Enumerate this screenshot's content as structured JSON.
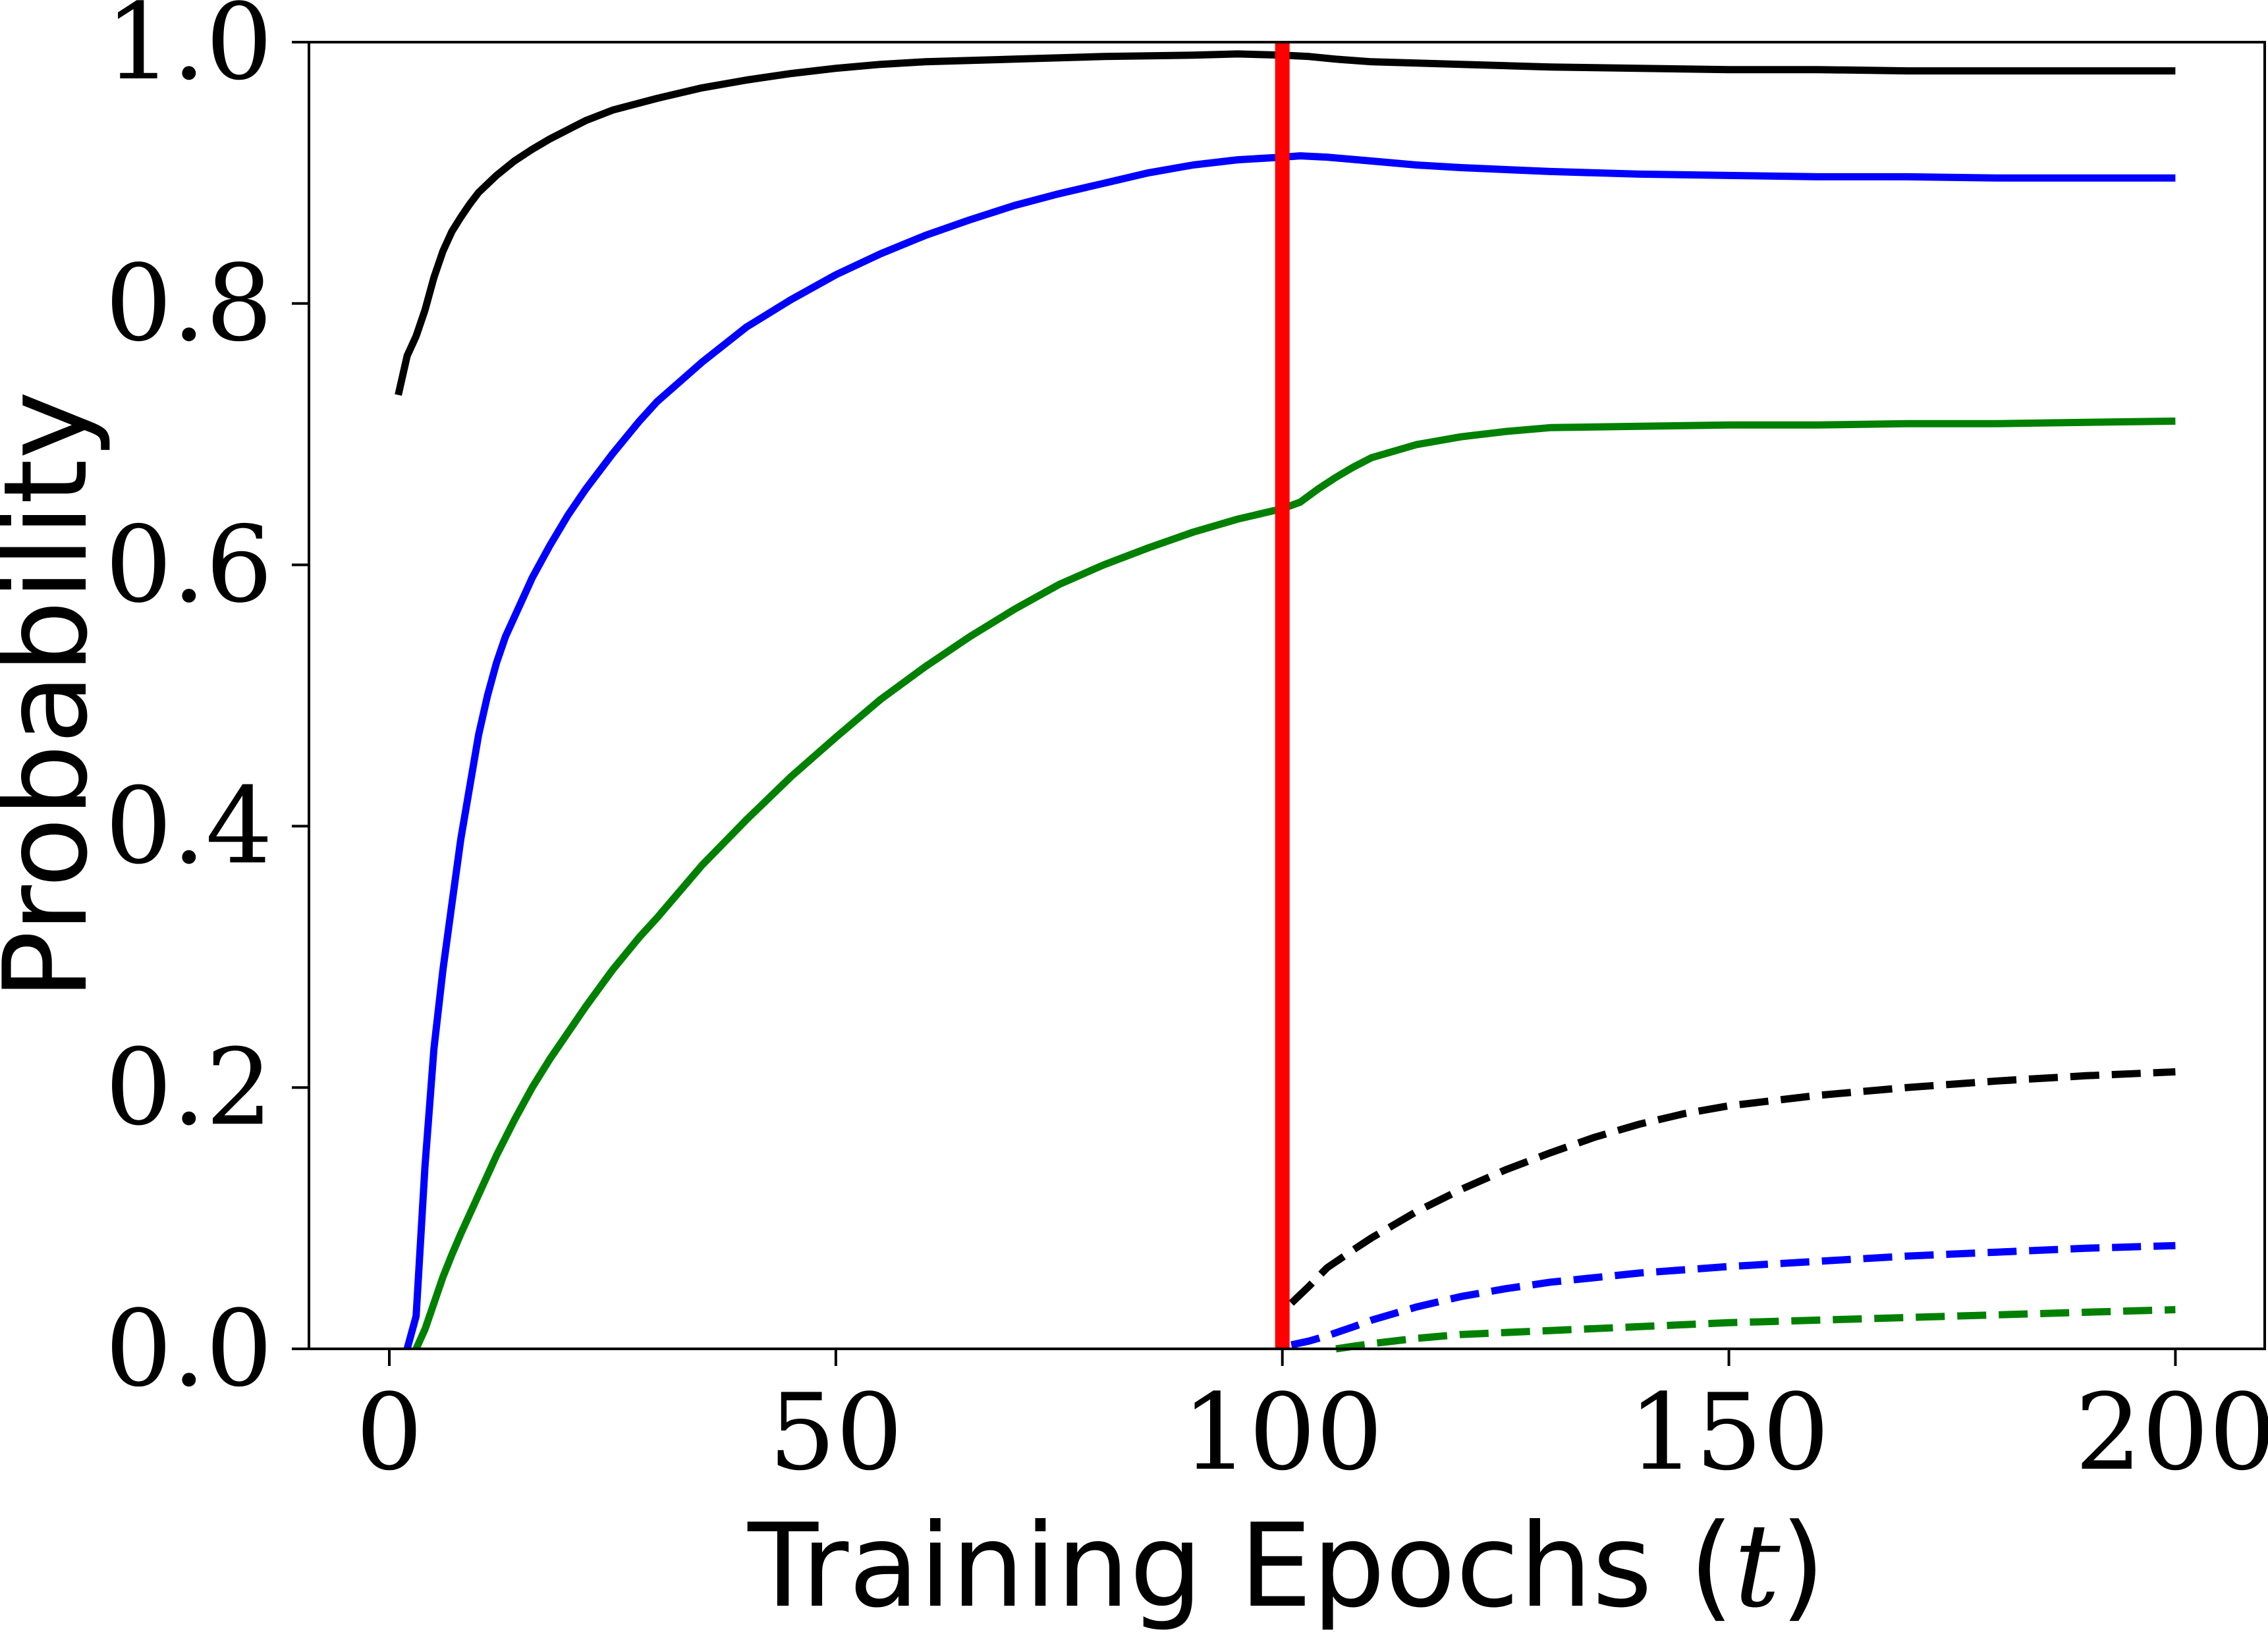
{
  "chart_data": {
    "type": "line",
    "xlabel": "Training Epochs (",
    "xlabel_var": "t",
    "xlabel_close": ")",
    "ylabel": "Probability",
    "xlim": [
      -9,
      210
    ],
    "ylim": [
      0.0,
      1.0
    ],
    "xticks": [
      0,
      50,
      100,
      150,
      200
    ],
    "yticks": [
      0.0,
      0.2,
      0.4,
      0.6,
      0.8,
      1.0
    ],
    "xtick_labels": [
      "0",
      "50",
      "100",
      "150",
      "200"
    ],
    "ytick_labels": [
      "0.0",
      "0.2",
      "0.4",
      "0.6",
      "0.8",
      "1.0"
    ],
    "grid": false,
    "vline": {
      "x": 100,
      "color": "#ff0000"
    },
    "series": [
      {
        "color": "#000000",
        "style": "solid",
        "points": [
          [
            1,
            0.73
          ],
          [
            2,
            0.76
          ],
          [
            3,
            0.775
          ],
          [
            4,
            0.795
          ],
          [
            5,
            0.82
          ],
          [
            6,
            0.84
          ],
          [
            7,
            0.855
          ],
          [
            8,
            0.866
          ],
          [
            9,
            0.876
          ],
          [
            10,
            0.885
          ],
          [
            12,
            0.898
          ],
          [
            14,
            0.909
          ],
          [
            16,
            0.918
          ],
          [
            18,
            0.926
          ],
          [
            20,
            0.933
          ],
          [
            22,
            0.94
          ],
          [
            25,
            0.948
          ],
          [
            30,
            0.957
          ],
          [
            35,
            0.965
          ],
          [
            40,
            0.971
          ],
          [
            45,
            0.976
          ],
          [
            50,
            0.98
          ],
          [
            55,
            0.983
          ],
          [
            60,
            0.985
          ],
          [
            70,
            0.987
          ],
          [
            80,
            0.989
          ],
          [
            90,
            0.99
          ],
          [
            95,
            0.991
          ],
          [
            100,
            0.99
          ],
          [
            103,
            0.989
          ],
          [
            106,
            0.987
          ],
          [
            110,
            0.985
          ],
          [
            115,
            0.984
          ],
          [
            120,
            0.983
          ],
          [
            130,
            0.981
          ],
          [
            140,
            0.98
          ],
          [
            150,
            0.979
          ],
          [
            160,
            0.979
          ],
          [
            170,
            0.978
          ],
          [
            180,
            0.978
          ],
          [
            190,
            0.978
          ],
          [
            200,
            0.978
          ]
        ]
      },
      {
        "color": "#0000ff",
        "style": "solid",
        "points": [
          [
            2,
            0.0
          ],
          [
            3,
            0.025
          ],
          [
            4,
            0.14
          ],
          [
            5,
            0.23
          ],
          [
            6,
            0.29
          ],
          [
            7,
            0.34
          ],
          [
            8,
            0.39
          ],
          [
            9,
            0.43
          ],
          [
            10,
            0.47
          ],
          [
            11,
            0.5
          ],
          [
            12,
            0.525
          ],
          [
            13,
            0.545
          ],
          [
            14,
            0.56
          ],
          [
            15,
            0.575
          ],
          [
            16,
            0.59
          ],
          [
            18,
            0.615
          ],
          [
            20,
            0.638
          ],
          [
            22,
            0.658
          ],
          [
            25,
            0.685
          ],
          [
            28,
            0.71
          ],
          [
            30,
            0.725
          ],
          [
            35,
            0.755
          ],
          [
            40,
            0.782
          ],
          [
            45,
            0.803
          ],
          [
            50,
            0.822
          ],
          [
            55,
            0.838
          ],
          [
            60,
            0.852
          ],
          [
            65,
            0.864
          ],
          [
            70,
            0.875
          ],
          [
            75,
            0.884
          ],
          [
            80,
            0.892
          ],
          [
            85,
            0.9
          ],
          [
            90,
            0.906
          ],
          [
            95,
            0.91
          ],
          [
            100,
            0.912
          ],
          [
            102,
            0.913
          ],
          [
            105,
            0.912
          ],
          [
            110,
            0.909
          ],
          [
            115,
            0.906
          ],
          [
            120,
            0.904
          ],
          [
            130,
            0.901
          ],
          [
            140,
            0.899
          ],
          [
            150,
            0.898
          ],
          [
            160,
            0.897
          ],
          [
            170,
            0.897
          ],
          [
            180,
            0.896
          ],
          [
            190,
            0.896
          ],
          [
            200,
            0.896
          ]
        ]
      },
      {
        "color": "#008000",
        "style": "solid",
        "points": [
          [
            3,
            0.0
          ],
          [
            4,
            0.015
          ],
          [
            5,
            0.035
          ],
          [
            6,
            0.055
          ],
          [
            7,
            0.072
          ],
          [
            8,
            0.088
          ],
          [
            10,
            0.118
          ],
          [
            12,
            0.148
          ],
          [
            14,
            0.175
          ],
          [
            16,
            0.2
          ],
          [
            18,
            0.222
          ],
          [
            20,
            0.242
          ],
          [
            22,
            0.262
          ],
          [
            25,
            0.29
          ],
          [
            28,
            0.315
          ],
          [
            30,
            0.33
          ],
          [
            35,
            0.37
          ],
          [
            40,
            0.405
          ],
          [
            45,
            0.438
          ],
          [
            50,
            0.468
          ],
          [
            55,
            0.497
          ],
          [
            60,
            0.522
          ],
          [
            65,
            0.545
          ],
          [
            70,
            0.566
          ],
          [
            75,
            0.585
          ],
          [
            80,
            0.6
          ],
          [
            85,
            0.613
          ],
          [
            90,
            0.625
          ],
          [
            95,
            0.635
          ],
          [
            100,
            0.643
          ],
          [
            102,
            0.648
          ],
          [
            104,
            0.658
          ],
          [
            106,
            0.667
          ],
          [
            108,
            0.675
          ],
          [
            110,
            0.682
          ],
          [
            115,
            0.692
          ],
          [
            120,
            0.698
          ],
          [
            125,
            0.702
          ],
          [
            130,
            0.705
          ],
          [
            140,
            0.706
          ],
          [
            150,
            0.707
          ],
          [
            160,
            0.707
          ],
          [
            170,
            0.708
          ],
          [
            180,
            0.708
          ],
          [
            190,
            0.709
          ],
          [
            200,
            0.71
          ]
        ]
      },
      {
        "color": "#000000",
        "style": "dashed",
        "points": [
          [
            101,
            0.035
          ],
          [
            103,
            0.048
          ],
          [
            105,
            0.062
          ],
          [
            108,
            0.076
          ],
          [
            110,
            0.085
          ],
          [
            115,
            0.105
          ],
          [
            120,
            0.122
          ],
          [
            125,
            0.137
          ],
          [
            130,
            0.15
          ],
          [
            135,
            0.162
          ],
          [
            140,
            0.172
          ],
          [
            145,
            0.18
          ],
          [
            150,
            0.186
          ],
          [
            160,
            0.194
          ],
          [
            170,
            0.2
          ],
          [
            180,
            0.205
          ],
          [
            190,
            0.209
          ],
          [
            200,
            0.212
          ]
        ]
      },
      {
        "color": "#0000ff",
        "style": "dashed",
        "points": [
          [
            101,
            0.003
          ],
          [
            103,
            0.006
          ],
          [
            105,
            0.01
          ],
          [
            108,
            0.017
          ],
          [
            110,
            0.022
          ],
          [
            115,
            0.032
          ],
          [
            120,
            0.04
          ],
          [
            125,
            0.046
          ],
          [
            130,
            0.051
          ],
          [
            140,
            0.058
          ],
          [
            150,
            0.063
          ],
          [
            160,
            0.067
          ],
          [
            170,
            0.071
          ],
          [
            180,
            0.074
          ],
          [
            190,
            0.077
          ],
          [
            200,
            0.079
          ]
        ]
      },
      {
        "color": "#008000",
        "style": "dashed",
        "points": [
          [
            106,
            0.0
          ],
          [
            108,
            0.002
          ],
          [
            110,
            0.004
          ],
          [
            115,
            0.008
          ],
          [
            120,
            0.011
          ],
          [
            130,
            0.014
          ],
          [
            140,
            0.017
          ],
          [
            150,
            0.02
          ],
          [
            160,
            0.022
          ],
          [
            170,
            0.024
          ],
          [
            180,
            0.026
          ],
          [
            190,
            0.028
          ],
          [
            200,
            0.03
          ]
        ]
      }
    ]
  }
}
